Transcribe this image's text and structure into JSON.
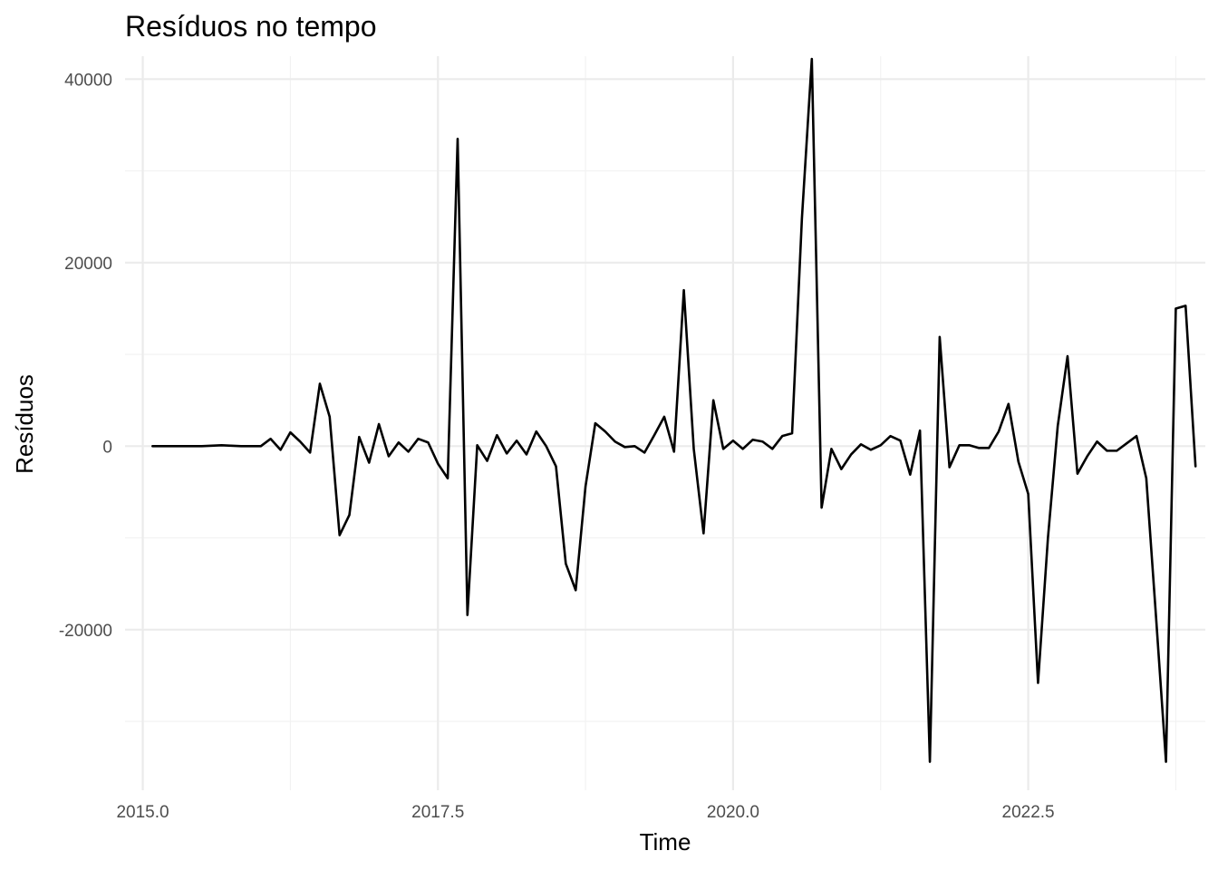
{
  "chart_data": {
    "type": "line",
    "title": "Resíduos no tempo",
    "xlabel": "Time",
    "ylabel": "Resíduos",
    "grid": true,
    "xlim": [
      2014.85,
      2024.0
    ],
    "ylim": [
      -37500,
      42500
    ],
    "x_ticks": [
      2015.0,
      2017.5,
      2020.0,
      2022.5
    ],
    "x_tick_labels": [
      "2015.0",
      "2017.5",
      "2020.0",
      "2022.5"
    ],
    "x_minor": [
      2016.25,
      2018.75,
      2021.25,
      2023.75
    ],
    "y_ticks": [
      -20000,
      0,
      20000,
      40000
    ],
    "y_tick_labels": [
      "-20000",
      "0",
      "20000",
      "40000"
    ],
    "y_minor": [
      -30000,
      -10000,
      10000,
      30000
    ],
    "series": [
      {
        "x": [
          2015.083,
          2015.167,
          2015.25,
          2015.333,
          2015.417,
          2015.5,
          2015.583,
          2015.667,
          2015.75,
          2015.833,
          2015.917,
          2016.0,
          2016.083,
          2016.167,
          2016.25,
          2016.333,
          2016.417,
          2016.5,
          2016.583,
          2016.667,
          2016.75,
          2016.833,
          2016.917,
          2017.0,
          2017.083,
          2017.167,
          2017.25,
          2017.333,
          2017.417,
          2017.5,
          2017.583,
          2017.667,
          2017.75,
          2017.833,
          2017.917,
          2018.0,
          2018.083,
          2018.167,
          2018.25,
          2018.333,
          2018.417,
          2018.5,
          2018.583,
          2018.667,
          2018.75,
          2018.833,
          2018.917,
          2019.0,
          2019.083,
          2019.167,
          2019.25,
          2019.333,
          2019.417,
          2019.5,
          2019.583,
          2019.667,
          2019.75,
          2019.833,
          2019.917,
          2020.0,
          2020.083,
          2020.167,
          2020.25,
          2020.333,
          2020.417,
          2020.5,
          2020.583,
          2020.667,
          2020.75,
          2020.833,
          2020.917,
          2021.0,
          2021.083,
          2021.167,
          2021.25,
          2021.333,
          2021.417,
          2021.5,
          2021.583,
          2021.667,
          2021.75,
          2021.833,
          2021.917,
          2022.0,
          2022.083,
          2022.167,
          2022.25,
          2022.333,
          2022.417,
          2022.5,
          2022.583,
          2022.667,
          2022.75,
          2022.833,
          2022.917,
          2023.0,
          2023.083,
          2023.167,
          2023.25,
          2023.333,
          2023.417,
          2023.5,
          2023.583,
          2023.667,
          2023.75,
          2023.833,
          2023.917
        ],
        "values": [
          0,
          0,
          0,
          0,
          0,
          0,
          50,
          100,
          50,
          0,
          0,
          0,
          800,
          -400,
          1500,
          500,
          -700,
          6800,
          3200,
          -9700,
          -7500,
          1000,
          -1800,
          2400,
          -1100,
          400,
          -600,
          800,
          400,
          -1900,
          -3500,
          33500,
          -18400,
          100,
          -1600,
          1200,
          -800,
          600,
          -900,
          1600,
          0,
          -2200,
          -12800,
          -15700,
          -4400,
          2500,
          1600,
          500,
          -100,
          0,
          -700,
          1200,
          3200,
          -600,
          17000,
          -300,
          -9500,
          5000,
          -300,
          600,
          -300,
          700,
          500,
          -300,
          1100,
          1400,
          24800,
          42200,
          -6700,
          -300,
          -2500,
          -900,
          200,
          -400,
          100,
          1100,
          600,
          -3100,
          1700,
          -34400,
          11900,
          -2300,
          100,
          100,
          -200,
          -200,
          1600,
          4600,
          -1700,
          -5200,
          -25800,
          -10000,
          2200,
          9800,
          -3000,
          -1100,
          500,
          -500,
          -500,
          300,
          1100,
          -3500,
          -18700,
          -34400,
          15000,
          15300,
          -2200
        ]
      }
    ]
  }
}
